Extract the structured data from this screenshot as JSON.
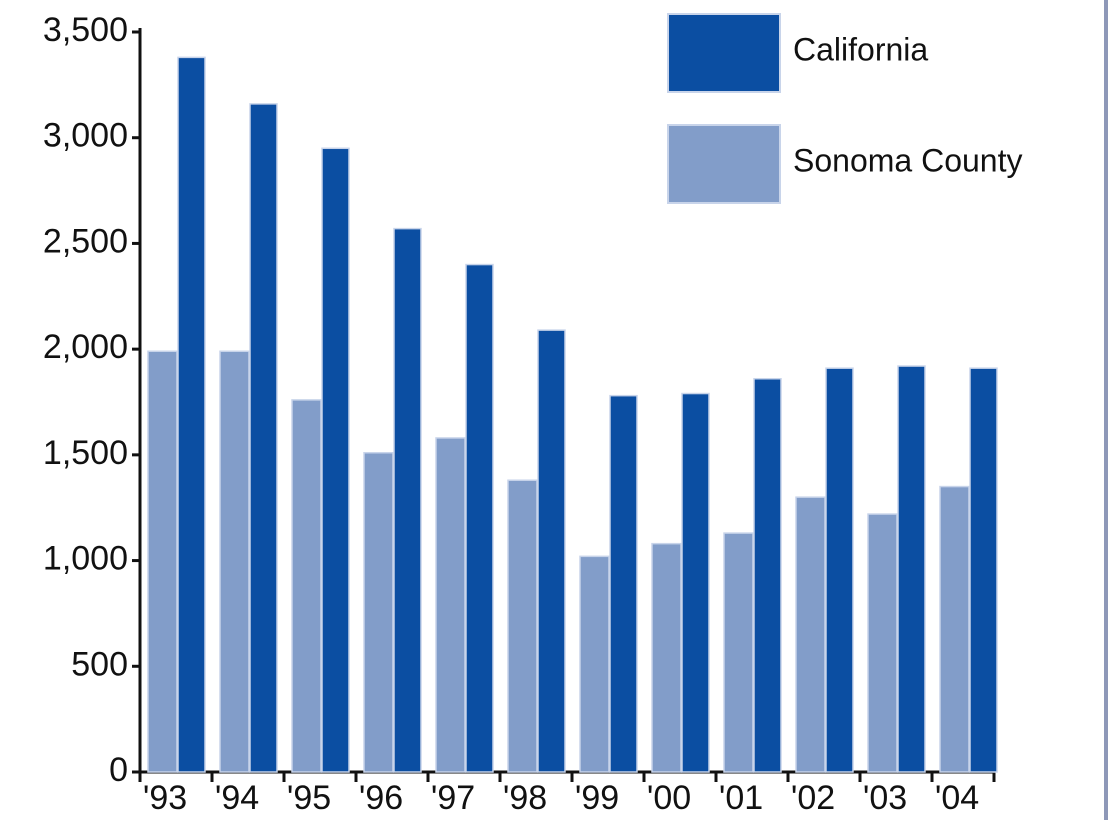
{
  "chart_data": {
    "type": "bar",
    "categories": [
      "'93",
      "'94",
      "'95",
      "'96",
      "'97",
      "'98",
      "'99",
      "'00",
      "'01",
      "'02",
      "'03",
      "'04"
    ],
    "series": [
      {
        "name": "California",
        "color": "#0b4ea2",
        "values": [
          3380,
          3160,
          2950,
          2570,
          2400,
          2090,
          1780,
          1790,
          1860,
          1910,
          1920,
          1910
        ]
      },
      {
        "name": "Sonoma County",
        "color": "#829dc9",
        "values": [
          1990,
          1990,
          1760,
          1510,
          1580,
          1380,
          1020,
          1080,
          1130,
          1300,
          1220,
          1350
        ]
      }
    ],
    "ylim": [
      0,
      3500
    ],
    "yticks": [
      0,
      500,
      {
        "value": 1000,
        "label": "1,000"
      },
      {
        "value": 1500,
        "label": "1,500"
      },
      {
        "value": 2000,
        "label": "2,000"
      },
      {
        "value": 2500,
        "label": "2,500"
      },
      {
        "value": 3000,
        "label": "3,000"
      },
      {
        "value": 3500,
        "label": "3,500"
      }
    ],
    "grid": false,
    "legend": "upper right"
  }
}
